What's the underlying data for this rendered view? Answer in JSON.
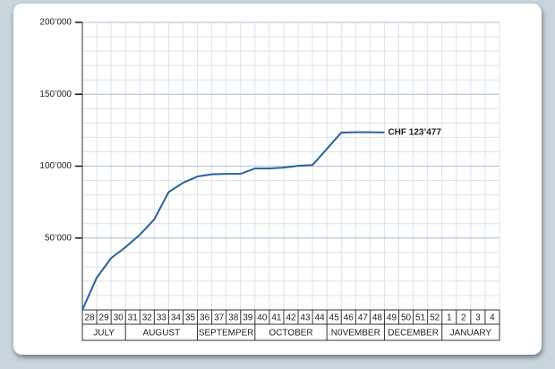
{
  "chart_data": {
    "type": "line",
    "categories": [
      "28",
      "29",
      "30",
      "31",
      "32",
      "33",
      "34",
      "35",
      "36",
      "37",
      "38",
      "39",
      "40",
      "41",
      "42",
      "43",
      "44",
      "45",
      "46",
      "47",
      "48",
      "49",
      "50",
      "51",
      "52",
      "1",
      "2",
      "3",
      "4"
    ],
    "months": [
      {
        "label": "JULY",
        "weeks": 3
      },
      {
        "label": "AUGUST",
        "weeks": 5
      },
      {
        "label": "SEPTEMPER",
        "weeks": 4
      },
      {
        "label": "OCTOBER",
        "weeks": 5
      },
      {
        "label": "N0VEMBER",
        "weeks": 4
      },
      {
        "label": "DECEMBER",
        "weeks": 4
      },
      {
        "label": "JANUARY",
        "weeks": 4
      }
    ],
    "series": [
      {
        "color": "#2a5f9e",
        "values": [
          0,
          22400,
          36000,
          43600,
          52300,
          63000,
          82000,
          88400,
          92800,
          94300,
          94600,
          94700,
          98400,
          98400,
          99000,
          100200,
          100800,
          112000,
          123300,
          123600,
          123600,
          123477,
          null,
          null,
          null,
          null,
          null,
          null,
          null
        ]
      }
    ],
    "annotation": "CHF 123’477",
    "ylim": [
      0,
      200000
    ],
    "yticks": [
      {
        "value": 50000,
        "label": "50’000"
      },
      {
        "value": 100000,
        "label": "100’000"
      },
      {
        "value": 150000,
        "label": "150’000"
      },
      {
        "value": 200000,
        "label": "200’000"
      }
    ],
    "minor_grid_step": 10000,
    "grid": true
  }
}
